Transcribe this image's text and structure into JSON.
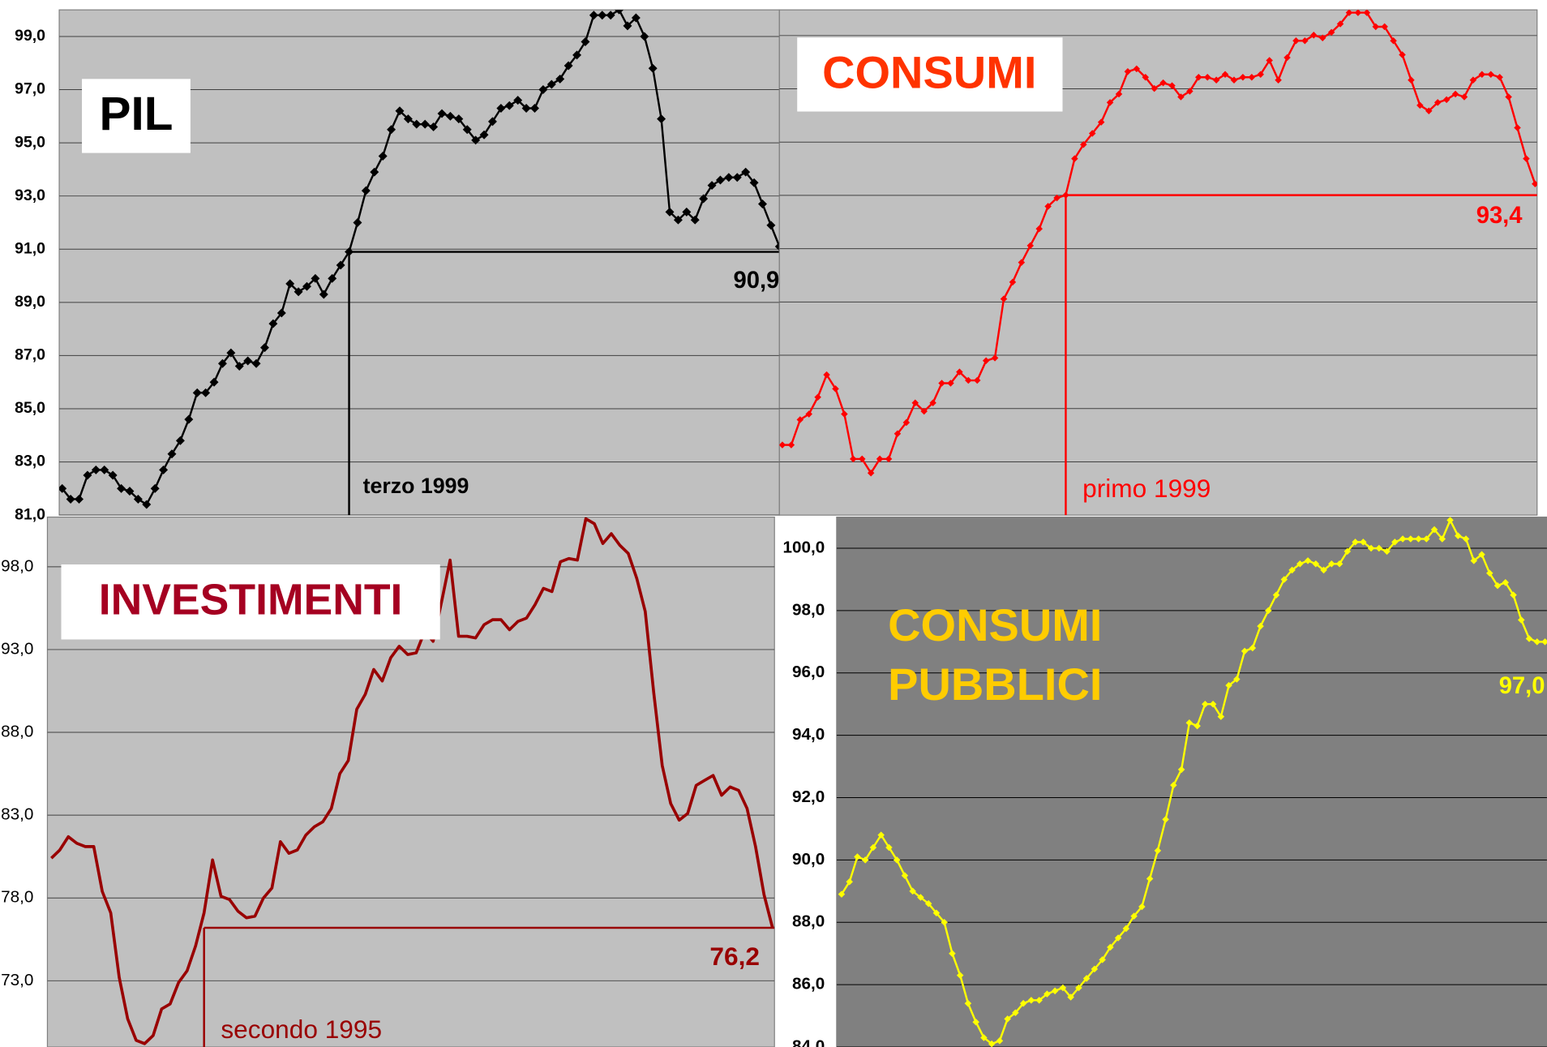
{
  "chart_data": [
    {
      "type": "line",
      "title": "PIL",
      "title_color": "#000000",
      "color": "#000000",
      "marker": "diamond",
      "ylim": [
        81,
        100
      ],
      "yticks": [
        {
          "value": 99,
          "label": "99,0"
        },
        {
          "value": 97,
          "label": "97,0"
        },
        {
          "value": 95,
          "label": "95,0"
        },
        {
          "value": 93,
          "label": "93,0"
        },
        {
          "value": 91,
          "label": "91,0"
        },
        {
          "value": 89,
          "label": "89,0"
        },
        {
          "value": 87,
          "label": "87,0"
        },
        {
          "value": 85,
          "label": "85,0"
        },
        {
          "value": 83,
          "label": "83,0"
        },
        {
          "value": 81,
          "label": "81,0"
        }
      ],
      "grid": true,
      "values": [
        82.0,
        81.6,
        81.6,
        82.5,
        82.7,
        82.7,
        82.5,
        82.0,
        81.9,
        81.6,
        81.4,
        82.0,
        82.7,
        83.3,
        83.8,
        84.6,
        85.6,
        85.6,
        86.0,
        86.7,
        87.1,
        86.6,
        86.8,
        86.7,
        87.3,
        88.2,
        88.6,
        89.7,
        89.4,
        89.6,
        89.9,
        89.3,
        89.9,
        90.4,
        90.9,
        92.0,
        93.2,
        93.9,
        94.5,
        95.5,
        96.2,
        95.9,
        95.7,
        95.7,
        95.6,
        96.1,
        96.0,
        95.9,
        95.5,
        95.1,
        95.3,
        95.8,
        96.3,
        96.4,
        96.6,
        96.3,
        96.3,
        97.0,
        97.2,
        97.4,
        97.9,
        98.3,
        98.8,
        99.8,
        99.8,
        99.8,
        100.0,
        99.4,
        99.7,
        99.0,
        97.8,
        95.9,
        92.4,
        92.1,
        92.4,
        92.1,
        92.9,
        93.4,
        93.6,
        93.7,
        93.7,
        93.9,
        93.5,
        92.7,
        91.9,
        91.1
      ],
      "reference": {
        "value": 90.9,
        "label": "90,9",
        "text": "terzo 1999",
        "color": "#000000"
      }
    },
    {
      "type": "line",
      "title": "CONSUMI",
      "title_color": "#ff3300",
      "color": "#ff0000",
      "marker": "diamond",
      "ylim": [
        82,
        100
      ],
      "values": [
        84.5,
        84.5,
        85.4,
        85.6,
        86.2,
        87.0,
        86.5,
        85.6,
        84.0,
        84.0,
        83.5,
        84.0,
        84.0,
        84.9,
        85.3,
        86.0,
        85.7,
        86.0,
        86.7,
        86.7,
        87.1,
        86.8,
        86.8,
        87.5,
        87.6,
        89.7,
        90.3,
        91.0,
        91.6,
        92.2,
        93.0,
        93.3,
        93.4,
        94.7,
        95.2,
        95.6,
        96.0,
        96.7,
        97.0,
        97.8,
        97.9,
        97.6,
        97.2,
        97.4,
        97.3,
        96.9,
        97.1,
        97.6,
        97.6,
        97.5,
        97.7,
        97.5,
        97.6,
        97.6,
        97.7,
        98.2,
        97.5,
        98.3,
        98.9,
        98.9,
        99.1,
        99.0,
        99.2,
        99.5,
        99.9,
        99.9,
        99.9,
        99.4,
        99.4,
        98.9,
        98.4,
        97.5,
        96.6,
        96.4,
        96.7,
        96.8,
        97.0,
        96.9,
        97.5,
        97.7,
        97.7,
        97.6,
        96.9,
        95.8,
        94.7,
        93.8
      ],
      "reference": {
        "value": 93.4,
        "label": "93,4",
        "text": "primo 1999",
        "color": "#ff0000"
      }
    },
    {
      "type": "line",
      "title": "INVESTIMENTI",
      "title_color": "#a50021",
      "color": "#990000",
      "marker": "none",
      "ylim": [
        69,
        101
      ],
      "yticks": [
        {
          "value": 98,
          "label": "98,0"
        },
        {
          "value": 93,
          "label": "93,0"
        },
        {
          "value": 88,
          "label": "88,0"
        },
        {
          "value": 83,
          "label": "83,0"
        },
        {
          "value": 78,
          "label": "78,0"
        },
        {
          "value": 73,
          "label": "73,0"
        }
      ],
      "grid": true,
      "values": [
        80.4,
        80.9,
        81.7,
        81.3,
        81.1,
        81.1,
        78.4,
        77.1,
        73.2,
        70.7,
        69.4,
        69.2,
        69.7,
        71.3,
        71.6,
        72.9,
        73.6,
        75.1,
        77.1,
        80.3,
        78.1,
        77.9,
        77.2,
        76.8,
        76.9,
        78.0,
        78.6,
        81.4,
        80.7,
        80.9,
        81.8,
        82.3,
        82.6,
        83.4,
        85.5,
        86.3,
        89.4,
        90.3,
        91.8,
        91.1,
        92.5,
        93.2,
        92.7,
        92.8,
        94.1,
        93.5,
        95.9,
        98.4,
        93.8,
        93.8,
        93.7,
        94.5,
        94.8,
        94.8,
        94.2,
        94.7,
        94.9,
        95.7,
        96.7,
        96.5,
        98.3,
        98.5,
        98.4,
        100.9,
        100.6,
        99.4,
        100.0,
        99.3,
        98.8,
        97.3,
        95.3,
        90.4,
        86.0,
        83.7,
        82.7,
        83.1,
        84.8,
        85.1,
        85.4,
        84.2,
        84.7,
        84.5,
        83.4,
        81.1,
        78.2,
        76.2
      ],
      "reference": {
        "value": 76.2,
        "label": "76,2",
        "text": "secondo 1995",
        "color": "#990000"
      }
    },
    {
      "type": "line",
      "title": [
        "CONSUMI",
        "PUBBLICI"
      ],
      "title_color": "#ffcc00",
      "color": "#ffff00",
      "marker": "diamond",
      "ylim": [
        84,
        101
      ],
      "yticks": [
        {
          "value": 100,
          "label": "100,0"
        },
        {
          "value": 98,
          "label": "98,0"
        },
        {
          "value": 96,
          "label": "96,0"
        },
        {
          "value": 94,
          "label": "94,0"
        },
        {
          "value": 92,
          "label": "92,0"
        },
        {
          "value": 90,
          "label": "90,0"
        },
        {
          "value": 88,
          "label": "88,0"
        },
        {
          "value": 86,
          "label": "86,0"
        },
        {
          "value": 84,
          "label": "84,0"
        }
      ],
      "grid": true,
      "values": [
        88.9,
        89.3,
        90.1,
        90.0,
        90.4,
        90.8,
        90.4,
        90.0,
        89.5,
        89.0,
        88.8,
        88.6,
        88.3,
        88.0,
        87.0,
        86.3,
        85.4,
        84.8,
        84.3,
        84.1,
        84.2,
        84.9,
        85.1,
        85.4,
        85.5,
        85.5,
        85.7,
        85.8,
        85.9,
        85.6,
        85.9,
        86.2,
        86.5,
        86.8,
        87.2,
        87.5,
        87.8,
        88.2,
        88.5,
        89.4,
        90.3,
        91.3,
        92.4,
        92.9,
        94.4,
        94.3,
        95.0,
        95.0,
        94.6,
        95.6,
        95.8,
        96.7,
        96.8,
        97.5,
        98.0,
        98.5,
        99.0,
        99.3,
        99.5,
        99.6,
        99.5,
        99.3,
        99.5,
        99.5,
        99.9,
        100.2,
        100.2,
        100.0,
        100.0,
        99.9,
        100.2,
        100.3,
        100.3,
        100.3,
        100.3,
        100.6,
        100.3,
        100.9,
        100.4,
        100.3,
        99.6,
        99.8,
        99.2,
        98.8,
        98.9,
        98.5,
        97.7,
        97.1,
        97.0,
        97.0
      ],
      "reference": {
        "value": 97.0,
        "label": "97,0",
        "color": "#ffff00"
      }
    }
  ]
}
